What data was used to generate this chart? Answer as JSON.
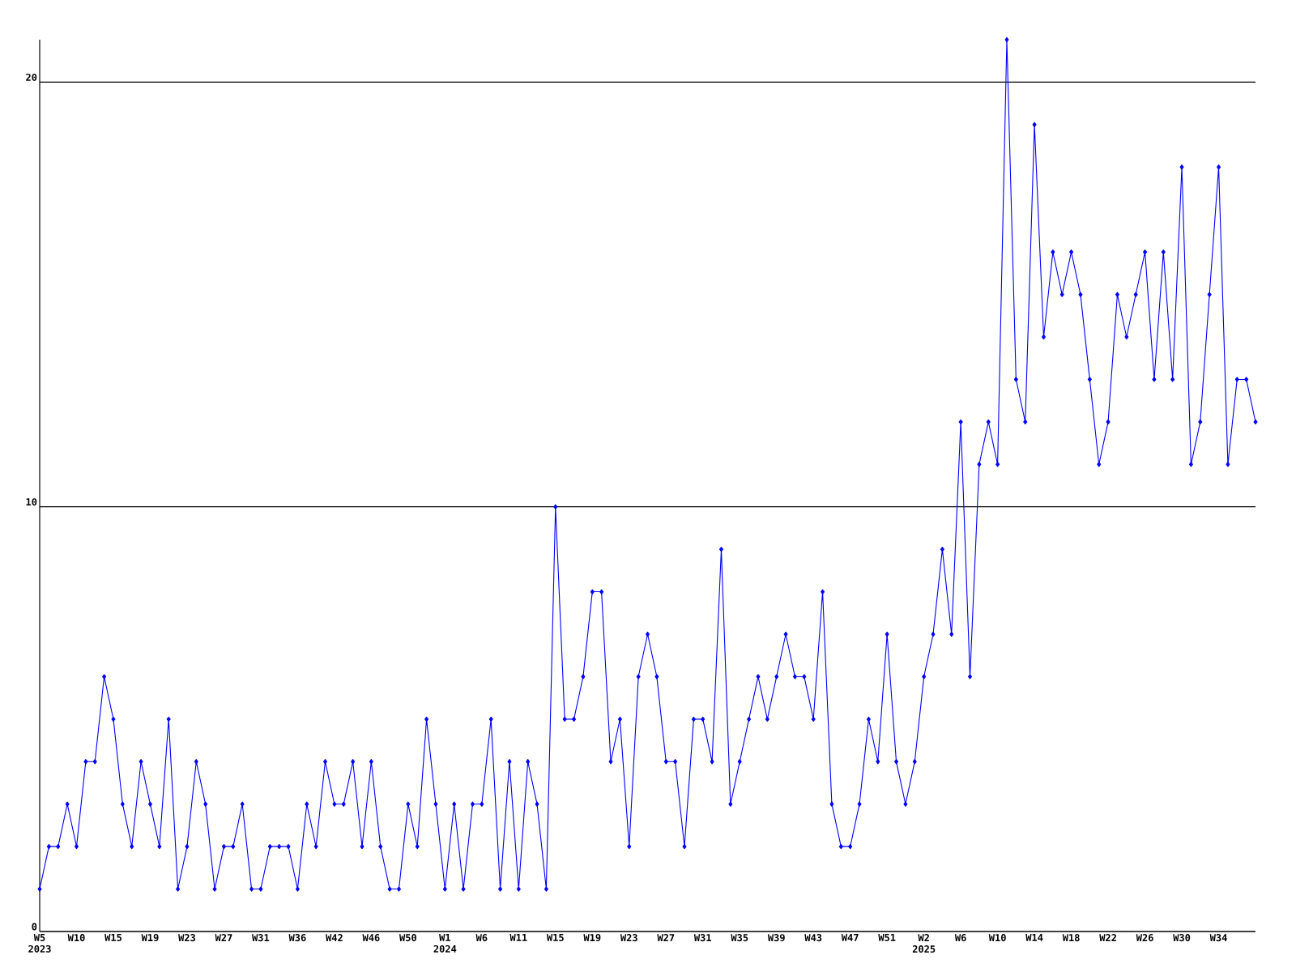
{
  "chart_data": {
    "type": "line",
    "color": "#0000ff",
    "marker": "diamond",
    "grid": "y",
    "categories": [
      "W5 2023",
      null,
      null,
      null,
      "W10",
      null,
      null,
      null,
      "W15",
      null,
      null,
      null,
      "W19",
      null,
      null,
      null,
      "W23",
      null,
      null,
      null,
      "W27",
      null,
      null,
      null,
      "W31",
      null,
      null,
      null,
      "W36",
      null,
      null,
      null,
      "W42",
      null,
      null,
      null,
      "W46",
      null,
      null,
      null,
      "W50",
      null,
      null,
      null,
      "W1 2024",
      null,
      null,
      null,
      "W6",
      null,
      null,
      null,
      "W11",
      null,
      null,
      null,
      "W15",
      null,
      null,
      null,
      "W19",
      null,
      null,
      null,
      "W23",
      null,
      null,
      null,
      "W27",
      null,
      null,
      null,
      "W31",
      null,
      null,
      null,
      "W35",
      null,
      null,
      null,
      "W39",
      null,
      null,
      null,
      "W43",
      null,
      null,
      null,
      "W47",
      null,
      null,
      null,
      "W51",
      null,
      null,
      null,
      "W2 2025",
      null,
      null,
      null,
      "W6",
      null,
      null,
      null,
      "W10",
      null,
      null,
      null,
      "W14",
      null,
      null,
      null,
      "W18",
      null,
      null,
      null,
      "W22",
      null,
      null,
      null,
      "W26",
      null,
      null,
      null,
      "W30",
      null,
      null,
      null,
      "W34",
      null,
      null,
      null,
      null
    ],
    "values": [
      1,
      2,
      2,
      3,
      2,
      4,
      4,
      6,
      5,
      3,
      2,
      4,
      3,
      2,
      5,
      1,
      2,
      4,
      3,
      1,
      2,
      2,
      3,
      1,
      1,
      2,
      2,
      2,
      1,
      3,
      2,
      4,
      3,
      3,
      4,
      2,
      4,
      2,
      1,
      1,
      3,
      2,
      5,
      3,
      1,
      3,
      1,
      3,
      3,
      5,
      1,
      4,
      1,
      4,
      3,
      1,
      10,
      5,
      5,
      6,
      8,
      8,
      4,
      5,
      2,
      6,
      7,
      6,
      4,
      4,
      2,
      5,
      5,
      4,
      9,
      3,
      4,
      5,
      6,
      5,
      6,
      7,
      6,
      6,
      5,
      8,
      3,
      2,
      2,
      3,
      5,
      4,
      7,
      4,
      3,
      4,
      6,
      7,
      9,
      7,
      12,
      6,
      11,
      12,
      11,
      21,
      13,
      12,
      19,
      14,
      16,
      15,
      16,
      15,
      13,
      11,
      12,
      15,
      14,
      15,
      16,
      13,
      16,
      13,
      18,
      11,
      12,
      15,
      18,
      11,
      13,
      13,
      12
    ],
    "ylim": [
      0,
      21
    ],
    "yticks": [
      0,
      10,
      20
    ]
  }
}
